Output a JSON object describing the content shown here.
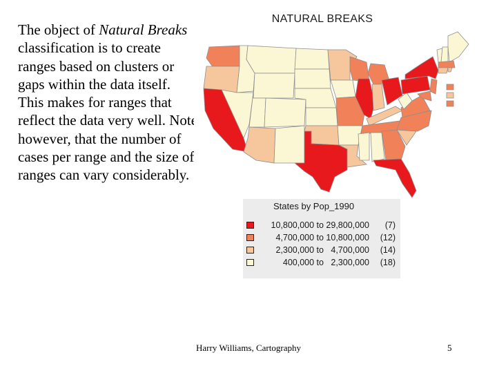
{
  "slide": {
    "body_parts": [
      {
        "text": "The object of ",
        "italic": false
      },
      {
        "text": "Natural Breaks",
        "italic": true
      },
      {
        "text": " classification is to create ranges based on clusters or gaps within the data itself. This makes for ranges that reflect the data very well. Note however, that the number of cases per range and the size of ranges can vary considerably.",
        "italic": false
      }
    ],
    "footer": "Harry Williams, Cartography",
    "page_number": "5"
  },
  "map": {
    "title": "NATURAL BREAKS",
    "colors": {
      "class1": "#e8191c",
      "class2": "#f08159",
      "class3": "#f6c79c",
      "class4": "#fbf6d3",
      "border": "#8e8e8e"
    }
  },
  "legend": {
    "title": "States by Pop_1990",
    "entries": [
      {
        "range": "10,800,000 to 29,800,000",
        "count": "(7)",
        "color": "#e8191c"
      },
      {
        "range": "4,700,000 to 10,800,000",
        "count": "(12)",
        "color": "#f08159"
      },
      {
        "range": "2,300,000 to   4,700,000",
        "count": "(14)",
        "color": "#f6c79c"
      },
      {
        "range": "400,000 to   2,300,000",
        "count": "(18)",
        "color": "#fbf6d3"
      }
    ]
  }
}
